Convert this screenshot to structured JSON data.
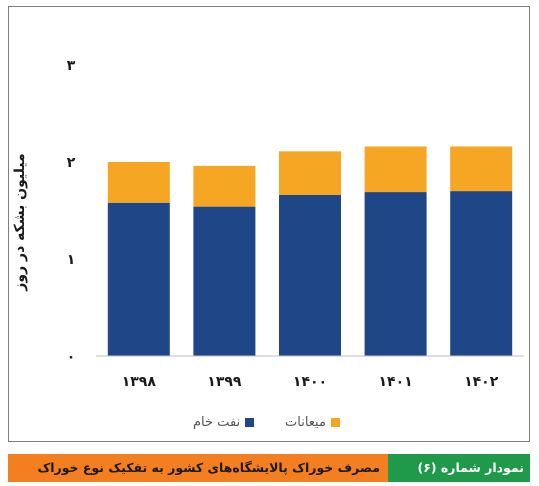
{
  "chart_data": {
    "type": "bar",
    "stacked": true,
    "categories": [
      "۱۳۹۸",
      "۱۳۹۹",
      "۱۴۰۰",
      "۱۴۰۱",
      "۱۴۰۲"
    ],
    "series": [
      {
        "name": "نفت خام",
        "color": "#1f4788",
        "values": [
          1.58,
          1.54,
          1.66,
          1.69,
          1.7
        ]
      },
      {
        "name": "میعانات",
        "color": "#f5a623",
        "values": [
          0.42,
          0.42,
          0.45,
          0.47,
          0.46
        ]
      }
    ],
    "ylabel": "میلیون بشکه در روز",
    "y_ticks": [
      "۰",
      "۱",
      "۲",
      "۳"
    ],
    "ylim": [
      0,
      3.5
    ],
    "legend_position": "bottom",
    "grid": false
  },
  "caption": {
    "number_label": "نمودار شماره (۶)",
    "title": "مصرف خوراک پالایشگاه‌های کشور به تفکیک نوع خوراک"
  },
  "colors": {
    "caption_number_bg": "#1f9a4a",
    "caption_title_bg": "#f47f20"
  }
}
